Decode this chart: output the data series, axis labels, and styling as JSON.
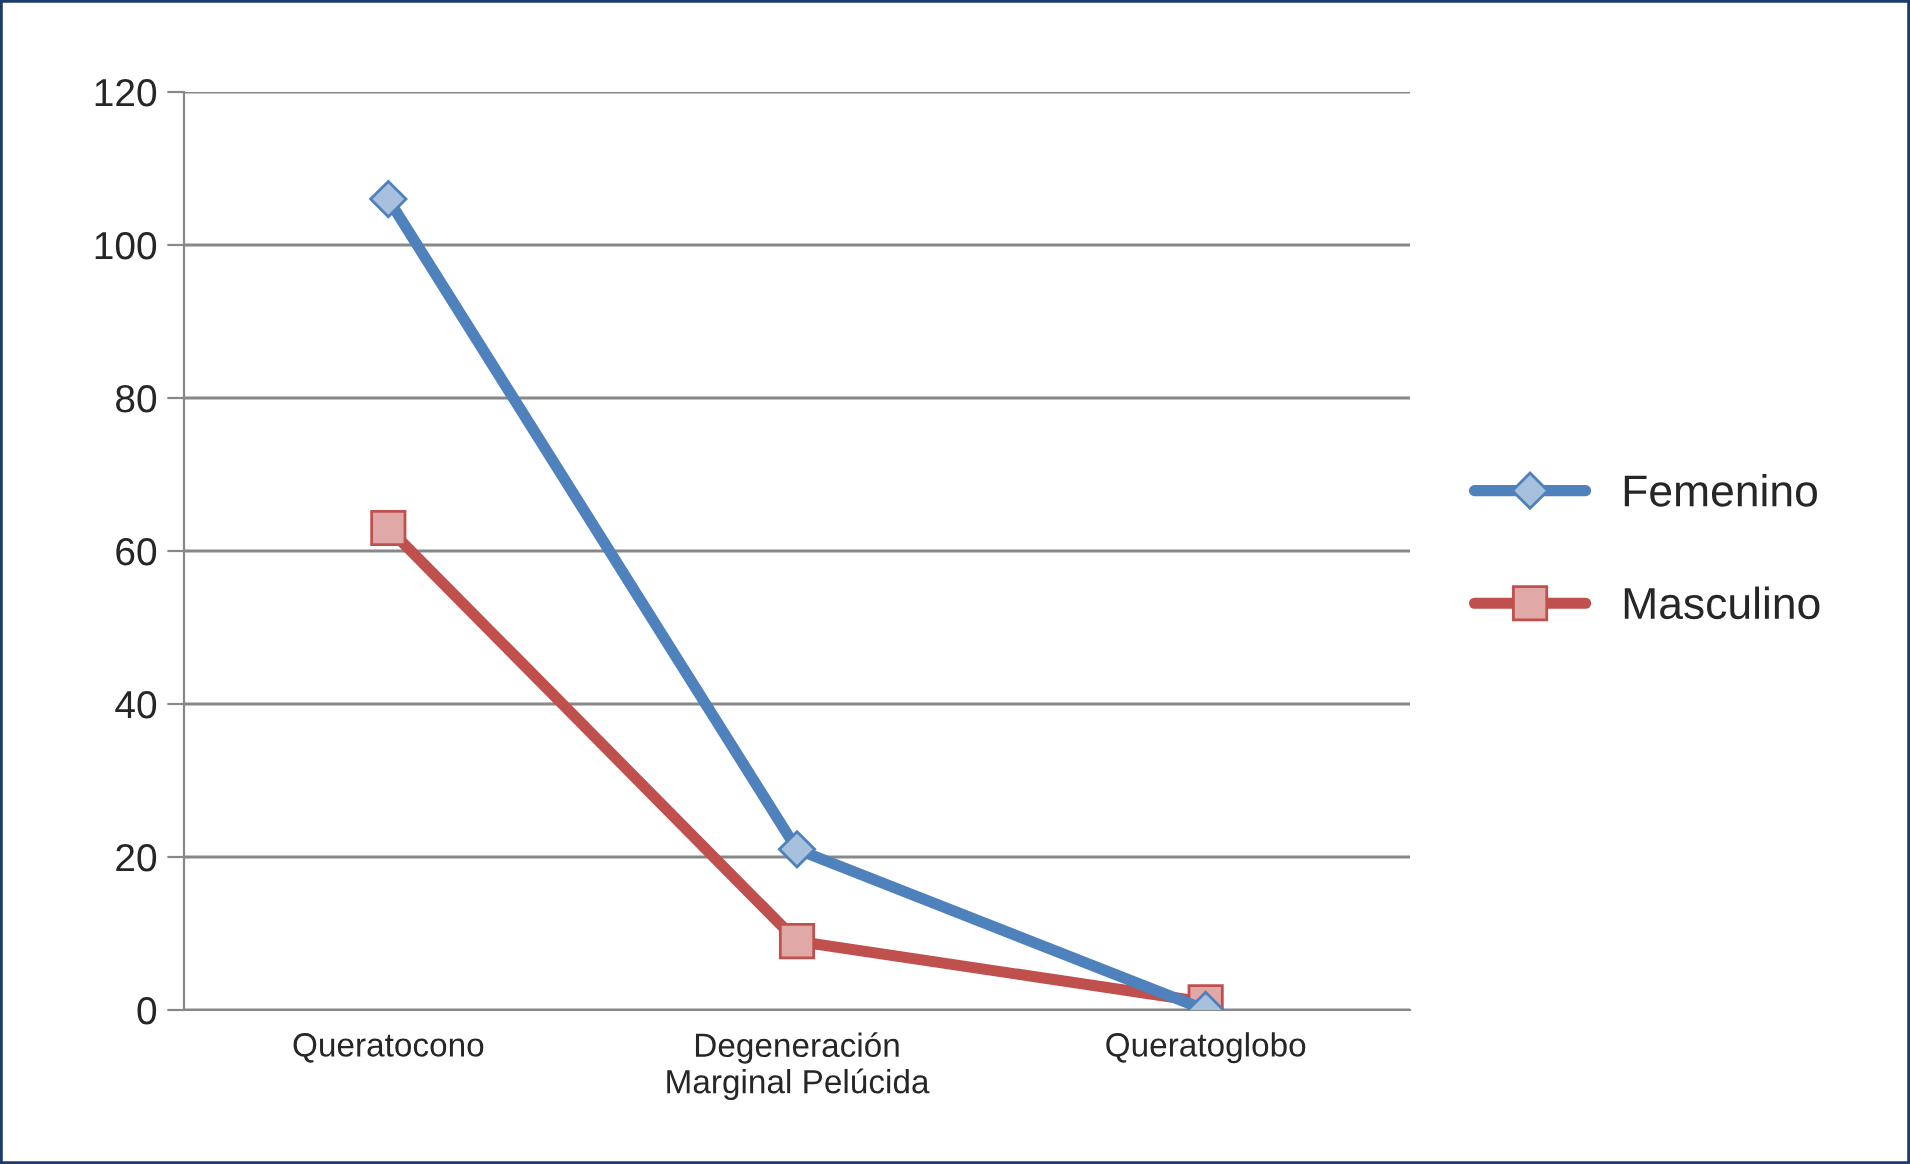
{
  "chart_data": {
    "type": "line",
    "categories": [
      "Queratocono",
      "Degeneración\nMarginal Pelúcida",
      "Queratoglobo"
    ],
    "series": [
      {
        "name": "Femenino",
        "color": "#4f81bd",
        "marker": "diamond",
        "values": [
          106,
          21,
          0
        ]
      },
      {
        "name": "Masculino",
        "color": "#c0504d",
        "marker": "square",
        "values": [
          63,
          9,
          1
        ]
      }
    ],
    "ylim": [
      0,
      120
    ],
    "yticks": [
      0,
      20,
      40,
      60,
      80,
      100,
      120
    ],
    "grid": "y",
    "legend": "right",
    "line_style": "solid"
  }
}
